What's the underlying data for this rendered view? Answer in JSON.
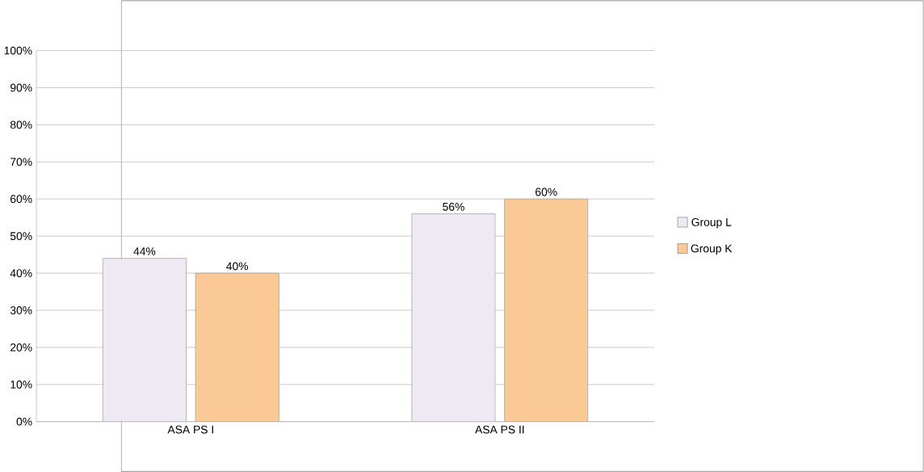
{
  "chart_data": {
    "type": "bar",
    "categories": [
      "ASA PS I",
      "ASA PS II"
    ],
    "series": [
      {
        "name": "Group L",
        "color": "#efe9f4",
        "values": [
          44,
          56
        ],
        "value_labels": [
          "44%",
          "56%"
        ]
      },
      {
        "name": "Group K",
        "color": "#fbc996",
        "values": [
          40,
          60
        ],
        "value_labels": [
          "40%",
          "60%"
        ]
      }
    ],
    "ylim": [
      0,
      100
    ],
    "yticks": [
      {
        "value": 0,
        "label": "0%"
      },
      {
        "value": 10,
        "label": "10%"
      },
      {
        "value": 20,
        "label": "20%"
      },
      {
        "value": 30,
        "label": "30%"
      },
      {
        "value": 40,
        "label": "40%"
      },
      {
        "value": 50,
        "label": "50%"
      },
      {
        "value": 60,
        "label": "60%"
      },
      {
        "value": 70,
        "label": "70%"
      },
      {
        "value": 80,
        "label": "80%"
      },
      {
        "value": 90,
        "label": "90%"
      },
      {
        "value": 100,
        "label": "100%"
      }
    ],
    "grid": "y",
    "legend": "right"
  }
}
